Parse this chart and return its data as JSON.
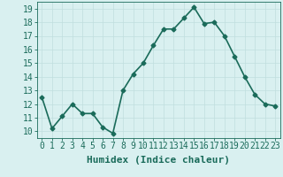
{
  "x": [
    0,
    1,
    2,
    3,
    4,
    5,
    6,
    7,
    8,
    9,
    10,
    11,
    12,
    13,
    14,
    15,
    16,
    17,
    18,
    19,
    20,
    21,
    22,
    23
  ],
  "y": [
    12.5,
    10.2,
    11.1,
    12.0,
    11.3,
    11.3,
    10.3,
    9.85,
    13.0,
    14.2,
    15.0,
    16.3,
    17.5,
    17.5,
    18.3,
    19.1,
    17.9,
    18.0,
    17.0,
    15.5,
    14.0,
    12.7,
    12.0,
    11.85
  ],
  "xlabel": "Humidex (Indice chaleur)",
  "ylim": [
    9.5,
    19.5
  ],
  "xlim": [
    -0.5,
    23.5
  ],
  "yticks": [
    10,
    11,
    12,
    13,
    14,
    15,
    16,
    17,
    18,
    19
  ],
  "xticks": [
    0,
    1,
    2,
    3,
    4,
    5,
    6,
    7,
    8,
    9,
    10,
    11,
    12,
    13,
    14,
    15,
    16,
    17,
    18,
    19,
    20,
    21,
    22,
    23
  ],
  "line_color": "#1a6b5a",
  "marker": "D",
  "marker_size": 2.5,
  "bg_color": "#d9f0f0",
  "grid_color": "#c0dede",
  "xlabel_fontsize": 8,
  "tick_fontsize": 7,
  "line_width": 1.2
}
